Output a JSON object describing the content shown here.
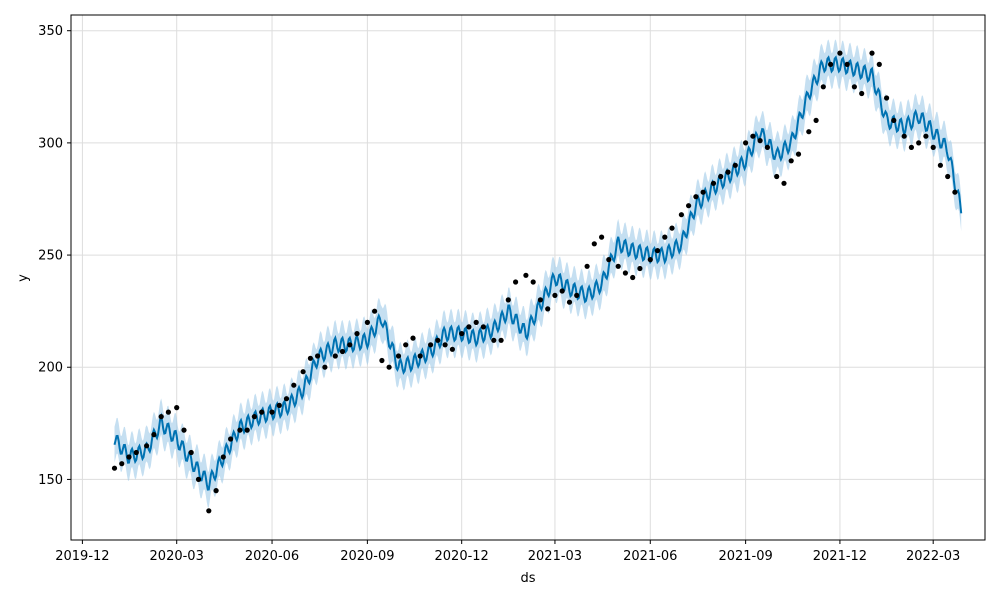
{
  "chart_data": {
    "type": "line",
    "title": "",
    "xlabel": "ds",
    "ylabel": "y",
    "xlim": [
      "2019-11-20",
      "2022-04-20"
    ],
    "ylim": [
      123,
      357
    ],
    "grid": true,
    "x_ticks": [
      "2019-12",
      "2020-03",
      "2020-06",
      "2020-09",
      "2020-12",
      "2021-03",
      "2021-06",
      "2021-09",
      "2021-12",
      "2022-03"
    ],
    "y_ticks": [
      150,
      200,
      250,
      300,
      350
    ],
    "colors": {
      "forecast_line": "#0072B2",
      "uncertainty_band": "#9ecae8",
      "observed_points": "#000000",
      "grid": "#dddddd"
    },
    "series": [
      {
        "kind": "forecast",
        "x": [
          "2020-01-01",
          "2020-01-15",
          "2020-02-01",
          "2020-02-15",
          "2020-03-01",
          "2020-03-15",
          "2020-04-01",
          "2020-04-15",
          "2020-05-01",
          "2020-05-15",
          "2020-06-01",
          "2020-06-15",
          "2020-07-01",
          "2020-07-15",
          "2020-08-01",
          "2020-08-15",
          "2020-09-01",
          "2020-09-15",
          "2020-10-01",
          "2020-10-15",
          "2020-11-01",
          "2020-11-15",
          "2020-12-01",
          "2020-12-15",
          "2021-01-01",
          "2021-01-15",
          "2021-02-01",
          "2021-02-15",
          "2021-03-01",
          "2021-03-15",
          "2021-04-01",
          "2021-04-15",
          "2021-05-01",
          "2021-05-15",
          "2021-06-01",
          "2021-06-15",
          "2021-07-01",
          "2021-07-15",
          "2021-08-01",
          "2021-08-15",
          "2021-09-01",
          "2021-09-15",
          "2021-10-01",
          "2021-10-15",
          "2021-11-01",
          "2021-11-15",
          "2021-12-01",
          "2021-12-15",
          "2022-01-01",
          "2022-01-15",
          "2022-02-01",
          "2022-02-15",
          "2022-03-01",
          "2022-03-15",
          "2022-03-28"
        ],
        "yhat": [
          168,
          160,
          163,
          175,
          168,
          158,
          148,
          160,
          173,
          177,
          180,
          182,
          190,
          204,
          210,
          210,
          212,
          222,
          200,
          202,
          207,
          215,
          215,
          213,
          217,
          225,
          215,
          228,
          240,
          235,
          232,
          237,
          255,
          252,
          250,
          250,
          255,
          272,
          280,
          285,
          292,
          305,
          294,
          300,
          322,
          335,
          335,
          333,
          330,
          310,
          307,
          312,
          305,
          297,
          270
        ],
        "band_width": 8
      },
      {
        "kind": "observed",
        "x": [
          "2020-01-01",
          "2020-01-08",
          "2020-01-15",
          "2020-01-22",
          "2020-02-01",
          "2020-02-08",
          "2020-02-15",
          "2020-02-22",
          "2020-03-01",
          "2020-03-08",
          "2020-03-15",
          "2020-03-22",
          "2020-04-01",
          "2020-04-08",
          "2020-04-15",
          "2020-04-22",
          "2020-05-01",
          "2020-05-08",
          "2020-05-15",
          "2020-05-22",
          "2020-06-01",
          "2020-06-08",
          "2020-06-15",
          "2020-06-22",
          "2020-07-01",
          "2020-07-08",
          "2020-07-15",
          "2020-07-22",
          "2020-08-01",
          "2020-08-08",
          "2020-08-15",
          "2020-08-22",
          "2020-09-01",
          "2020-09-08",
          "2020-09-15",
          "2020-09-22",
          "2020-10-01",
          "2020-10-08",
          "2020-10-15",
          "2020-10-22",
          "2020-11-01",
          "2020-11-08",
          "2020-11-15",
          "2020-11-22",
          "2020-12-01",
          "2020-12-08",
          "2020-12-15",
          "2020-12-22",
          "2021-01-01",
          "2021-01-08",
          "2021-01-15",
          "2021-01-22",
          "2021-02-01",
          "2021-02-08",
          "2021-02-15",
          "2021-02-22",
          "2021-03-01",
          "2021-03-08",
          "2021-03-15",
          "2021-03-22",
          "2021-04-01",
          "2021-04-08",
          "2021-04-15",
          "2021-04-22",
          "2021-05-01",
          "2021-05-08",
          "2021-05-15",
          "2021-05-22",
          "2021-06-01",
          "2021-06-08",
          "2021-06-15",
          "2021-06-22",
          "2021-07-01",
          "2021-07-08",
          "2021-07-15",
          "2021-07-22",
          "2021-08-01",
          "2021-08-08",
          "2021-08-15",
          "2021-08-22",
          "2021-09-01",
          "2021-09-08",
          "2021-09-15",
          "2021-09-22",
          "2021-10-01",
          "2021-10-08",
          "2021-10-15",
          "2021-10-22",
          "2021-11-01",
          "2021-11-08",
          "2021-11-15",
          "2021-11-22",
          "2021-12-01",
          "2021-12-08",
          "2021-12-15",
          "2021-12-22",
          "2022-01-01",
          "2022-01-08",
          "2022-01-15",
          "2022-01-22",
          "2022-02-01",
          "2022-02-08",
          "2022-02-15",
          "2022-02-22",
          "2022-03-01",
          "2022-03-08",
          "2022-03-15",
          "2022-03-22"
        ],
        "y": [
          155,
          157,
          160,
          162,
          165,
          170,
          178,
          180,
          182,
          172,
          162,
          150,
          136,
          145,
          160,
          168,
          172,
          172,
          178,
          180,
          180,
          183,
          186,
          192,
          198,
          204,
          205,
          200,
          205,
          207,
          210,
          215,
          220,
          225,
          203,
          200,
          205,
          210,
          213,
          205,
          210,
          212,
          210,
          208,
          215,
          218,
          220,
          218,
          212,
          212,
          230,
          238,
          241,
          238,
          230,
          226,
          232,
          234,
          229,
          232,
          245,
          255,
          258,
          248,
          245,
          242,
          240,
          244,
          248,
          252,
          258,
          262,
          268,
          272,
          276,
          278,
          282,
          285,
          287,
          290,
          300,
          303,
          301,
          298,
          285,
          282,
          292,
          295,
          305,
          310,
          325,
          335,
          340,
          335,
          325,
          322,
          340,
          335,
          320,
          310,
          303,
          298,
          300,
          303,
          298,
          290,
          285,
          278
        ]
      }
    ]
  }
}
